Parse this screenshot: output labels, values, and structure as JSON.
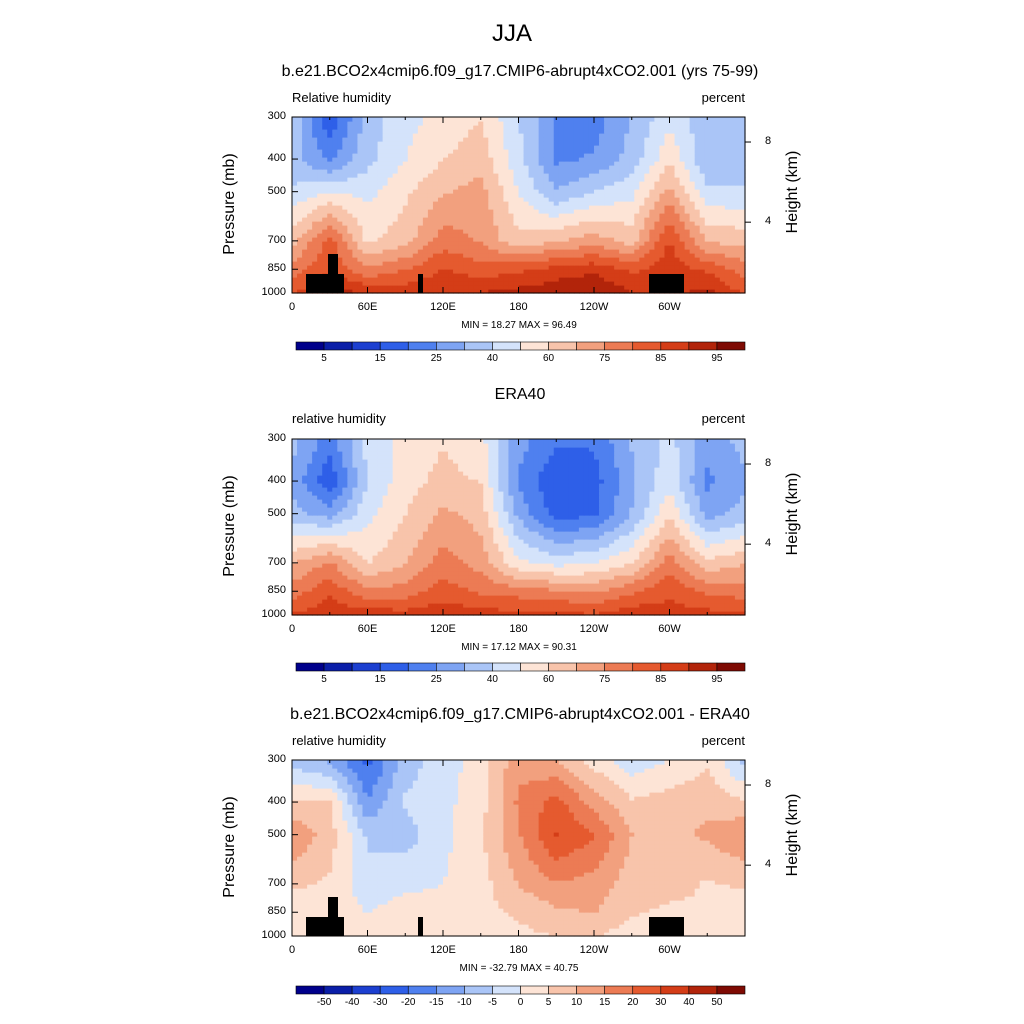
{
  "figure": {
    "title": "JJA"
  },
  "panels": [
    {
      "title": "b.e21.BCO2x4cmip6.f09_g17.CMIP6-abrupt4xCO2.001 (yrs 75-99)",
      "left_string": "Relative humidity",
      "right_string": "percent",
      "minmax": "MIN = 18.27 MAX = 96.49"
    },
    {
      "title": "ERA40",
      "left_string": "relative humidity",
      "right_string": "percent",
      "minmax": "MIN = 17.12 MAX = 90.31"
    },
    {
      "title": "b.e21.BCO2x4cmip6.f09_g17.CMIP6-abrupt4xCO2.001 - ERA40",
      "left_string": "relative humidity",
      "right_string": "percent",
      "minmax": "MIN = -32.79 MAX = 40.75"
    }
  ],
  "axes": {
    "ylabel_left": "Pressure (mb)",
    "ylabel_right": "Height (km)",
    "pressure_ticks": [
      "300",
      "400",
      "500",
      "700",
      "850",
      "1000"
    ],
    "height_ticks": [
      "8",
      "4"
    ],
    "lon_ticks": [
      "0",
      "60E",
      "120E",
      "180",
      "120W",
      "60W"
    ]
  },
  "colorbars": {
    "abs_labels": [
      "5",
      "15",
      "25",
      "40",
      "60",
      "75",
      "85",
      "95"
    ],
    "diff_labels": [
      "-50",
      "-40",
      "-30",
      "-20",
      "-15",
      "-10",
      "-5",
      "0",
      "5",
      "10",
      "15",
      "20",
      "30",
      "40",
      "50"
    ],
    "abs_colors": [
      "#00008b",
      "#0a1ea8",
      "#1c3fd0",
      "#2e5fe8",
      "#4f80ef",
      "#7ea4f3",
      "#aac5f7",
      "#d4e3fb",
      "#fde4d6",
      "#f8c4ab",
      "#f2a07e",
      "#ec7b54",
      "#e55a2f",
      "#d43d17",
      "#b2240a",
      "#7e0a03"
    ],
    "diff_colors": [
      "#00008b",
      "#0a1ea8",
      "#1c3fd0",
      "#2e5fe8",
      "#4f80ef",
      "#7ea4f3",
      "#aac5f7",
      "#d4e3fb",
      "#fde4d6",
      "#f8c4ab",
      "#f2a07e",
      "#ec7b54",
      "#e55a2f",
      "#d43d17",
      "#b2240a",
      "#7e0a03"
    ]
  },
  "chart_data": [
    {
      "type": "heatmap",
      "title": "b.e21.BCO2x4cmip6.f09_g17.CMIP6-abrupt4xCO2.001 (yrs 75-99)",
      "variable": "Relative humidity",
      "units": "percent",
      "xlabel": "",
      "ylabel": "Pressure (mb)",
      "ylabel_right": "Height (km)",
      "x": [
        0,
        30,
        60,
        90,
        120,
        150,
        180,
        210,
        240,
        270,
        300,
        330
      ],
      "y": [
        1000,
        850,
        700,
        500,
        400,
        300
      ],
      "values": [
        [
          80,
          90,
          88,
          85,
          86,
          88,
          90,
          92,
          94,
          88,
          86,
          90
        ],
        [
          72,
          80,
          70,
          75,
          82,
          78,
          80,
          84,
          86,
          80,
          85,
          80
        ],
        [
          60,
          78,
          55,
          60,
          72,
          68,
          58,
          62,
          66,
          60,
          82,
          62
        ],
        [
          45,
          50,
          48,
          55,
          62,
          65,
          50,
          38,
          44,
          48,
          65,
          45
        ],
        [
          40,
          30,
          42,
          50,
          56,
          60,
          46,
          30,
          32,
          40,
          55,
          38
        ],
        [
          42,
          20,
          40,
          48,
          52,
          56,
          44,
          30,
          28,
          38,
          48,
          40
        ]
      ],
      "min": 18.27,
      "max": 96.49
    },
    {
      "type": "heatmap",
      "title": "ERA40",
      "variable": "relative humidity",
      "units": "percent",
      "xlabel": "",
      "ylabel": "Pressure (mb)",
      "ylabel_right": "Height (km)",
      "x": [
        0,
        30,
        60,
        90,
        120,
        150,
        180,
        210,
        240,
        270,
        300,
        330
      ],
      "y": [
        1000,
        850,
        700,
        500,
        400,
        300
      ],
      "values": [
        [
          82,
          86,
          86,
          84,
          86,
          84,
          84,
          84,
          82,
          86,
          84,
          84
        ],
        [
          72,
          80,
          70,
          72,
          78,
          74,
          72,
          70,
          68,
          74,
          80,
          74
        ],
        [
          62,
          70,
          56,
          62,
          72,
          66,
          52,
          48,
          50,
          56,
          72,
          58
        ],
        [
          40,
          35,
          48,
          56,
          64,
          60,
          36,
          22,
          24,
          38,
          55,
          35
        ],
        [
          36,
          20,
          44,
          54,
          58,
          56,
          30,
          20,
          22,
          36,
          48,
          30
        ],
        [
          40,
          28,
          46,
          52,
          56,
          52,
          34,
          26,
          26,
          38,
          46,
          34
        ]
      ],
      "min": 17.12,
      "max": 90.31
    },
    {
      "type": "heatmap",
      "title": "b.e21.BCO2x4cmip6.f09_g17.CMIP6-abrupt4xCO2.001 - ERA40",
      "variable": "relative humidity",
      "units": "percent",
      "xlabel": "",
      "ylabel": "Pressure (mb)",
      "ylabel_right": "Height (km)",
      "x": [
        0,
        30,
        60,
        90,
        120,
        150,
        180,
        210,
        240,
        270,
        300,
        330
      ],
      "y": [
        1000,
        850,
        700,
        500,
        400,
        300
      ],
      "values": [
        [
          2,
          3,
          2,
          1,
          0,
          3,
          5,
          7,
          8,
          2,
          4,
          5
        ],
        [
          3,
          5,
          0,
          4,
          4,
          5,
          8,
          12,
          14,
          8,
          5,
          6
        ],
        [
          8,
          6,
          -5,
          -2,
          0,
          4,
          14,
          20,
          18,
          10,
          10,
          6
        ],
        [
          20,
          10,
          -8,
          -10,
          -2,
          6,
          20,
          35,
          28,
          14,
          12,
          15
        ],
        [
          8,
          8,
          -20,
          -6,
          -2,
          4,
          22,
          30,
          18,
          8,
          10,
          12
        ],
        [
          -10,
          -15,
          -30,
          -10,
          -4,
          4,
          18,
          14,
          4,
          -4,
          0,
          6
        ]
      ],
      "min": -32.79,
      "max": 40.75
    }
  ]
}
